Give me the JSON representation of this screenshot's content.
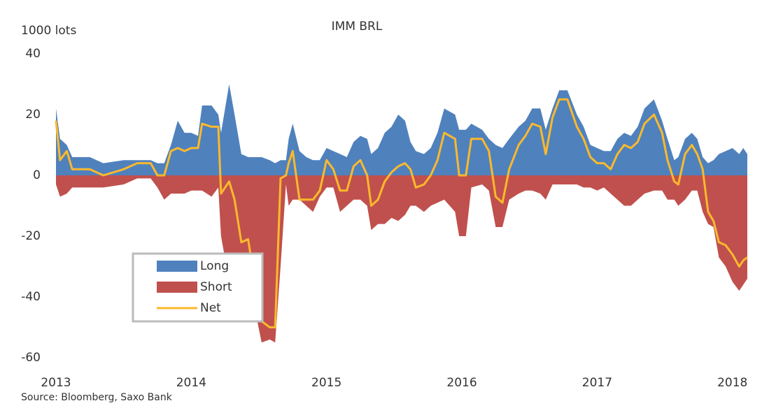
{
  "chart_data": {
    "type": "area",
    "title": "IMM BRL",
    "ylabel": "1000 lots",
    "source": "Source: Bloomberg,  Saxo Bank",
    "x": [
      2013.0,
      2013.03,
      2013.08,
      2013.12,
      2013.25,
      2013.35,
      2013.5,
      2013.6,
      2013.7,
      2013.75,
      2013.8,
      2013.85,
      2013.9,
      2013.95,
      2014.0,
      2014.05,
      2014.08,
      2014.15,
      2014.2,
      2014.22,
      2014.28,
      2014.32,
      2014.37,
      2014.42,
      2014.47,
      2014.52,
      2014.58,
      2014.62,
      2014.66,
      2014.7,
      2014.72,
      2014.75,
      2014.8,
      2014.85,
      2014.9,
      2014.95,
      2015.0,
      2015.05,
      2015.1,
      2015.15,
      2015.2,
      2015.25,
      2015.3,
      2015.33,
      2015.38,
      2015.43,
      2015.48,
      2015.53,
      2015.58,
      2015.62,
      2015.66,
      2015.72,
      2015.77,
      2015.82,
      2015.87,
      2015.95,
      2015.98,
      2016.03,
      2016.07,
      2016.15,
      2016.2,
      2016.25,
      2016.3,
      2016.35,
      2016.42,
      2016.47,
      2016.52,
      2016.58,
      2016.62,
      2016.67,
      2016.72,
      2016.78,
      2016.85,
      2016.9,
      2016.95,
      2017.0,
      2017.05,
      2017.1,
      2017.15,
      2017.2,
      2017.25,
      2017.3,
      2017.35,
      2017.42,
      2017.48,
      2017.52,
      2017.57,
      2017.6,
      2017.65,
      2017.7,
      2017.74,
      2017.78,
      2017.82,
      2017.86,
      2017.9,
      2017.95,
      2018.0,
      2018.05,
      2018.08,
      2018.11
    ],
    "series": [
      {
        "name": "Long",
        "type": "area",
        "color": "#4f81bd",
        "values": [
          22,
          12,
          10,
          6,
          6,
          4,
          5,
          5,
          5,
          4,
          4,
          10,
          18,
          14,
          14,
          13,
          23,
          23,
          20,
          14,
          30,
          20,
          7,
          6,
          6,
          6,
          5,
          4,
          5,
          5,
          12,
          17,
          8,
          6,
          5,
          5,
          9,
          8,
          7,
          6,
          11,
          13,
          12,
          7,
          9,
          14,
          16,
          20,
          18,
          11,
          8,
          7,
          9,
          14,
          22,
          20,
          15,
          15,
          17,
          15,
          12,
          10,
          9,
          12,
          16,
          18,
          22,
          22,
          15,
          22,
          28,
          28,
          20,
          16,
          10,
          9,
          8,
          8,
          12,
          14,
          13,
          16,
          22,
          25,
          18,
          12,
          5,
          6,
          12,
          14,
          12,
          6,
          4,
          5,
          7,
          8,
          9,
          7,
          9,
          7
        ]
      },
      {
        "name": "Short",
        "type": "area",
        "color": "#c0504d",
        "values": [
          -3,
          -7,
          -6,
          -4,
          -4,
          -4,
          -3,
          -1,
          -1,
          -4,
          -8,
          -6,
          -6,
          -6,
          -5,
          -5,
          -5,
          -7,
          -4,
          -20,
          -35,
          -36,
          -40,
          -42,
          -44,
          -55,
          -54,
          -55,
          -30,
          -3,
          -10,
          -8,
          -8,
          -10,
          -12,
          -7,
          -4,
          -4,
          -12,
          -10,
          -8,
          -8,
          -10,
          -18,
          -16,
          -16,
          -14,
          -15,
          -13,
          -10,
          -10,
          -12,
          -10,
          -9,
          -8,
          -12,
          -20,
          -20,
          -4,
          -3,
          -5,
          -17,
          -17,
          -8,
          -6,
          -5,
          -5,
          -6,
          -8,
          -3,
          -3,
          -3,
          -3,
          -4,
          -4,
          -5,
          -4,
          -6,
          -8,
          -10,
          -10,
          -8,
          -6,
          -5,
          -5,
          -8,
          -8,
          -10,
          -8,
          -5,
          -5,
          -12,
          -16,
          -17,
          -27,
          -30,
          -35,
          -38,
          -36,
          -34
        ]
      },
      {
        "name": "Net",
        "type": "line",
        "color": "#fbb92c",
        "values": [
          18,
          5,
          8,
          2,
          2,
          0,
          2,
          4,
          4,
          0,
          0,
          8,
          9,
          8,
          9,
          9,
          17,
          16,
          16,
          -6,
          -2,
          -8,
          -22,
          -21,
          -35,
          -48,
          -50,
          -50,
          -1,
          0,
          4,
          8,
          -8,
          -8,
          -8,
          -5,
          5,
          2,
          -5,
          -5,
          3,
          5,
          0,
          -10,
          -8,
          -2,
          1,
          3,
          4,
          2,
          -4,
          -3,
          0,
          5,
          14,
          12,
          0,
          0,
          12,
          12,
          8,
          -7,
          -9,
          2,
          10,
          13,
          17,
          16,
          7,
          19,
          25,
          25,
          16,
          12,
          6,
          4,
          4,
          2,
          7,
          10,
          9,
          11,
          17,
          20,
          14,
          5,
          -2,
          -3,
          7,
          10,
          7,
          2,
          -12,
          -15,
          -22,
          -23,
          -26,
          -30,
          -28,
          -27
        ]
      }
    ],
    "xlim": [
      2013,
      2018.11
    ],
    "xticks": [
      2013,
      2014,
      2015,
      2016,
      2017,
      2018
    ],
    "ylim": [
      -60,
      40
    ],
    "yticks": [
      40,
      20,
      0,
      -20,
      -40,
      -60
    ],
    "grid": false,
    "legend": "lower left"
  }
}
